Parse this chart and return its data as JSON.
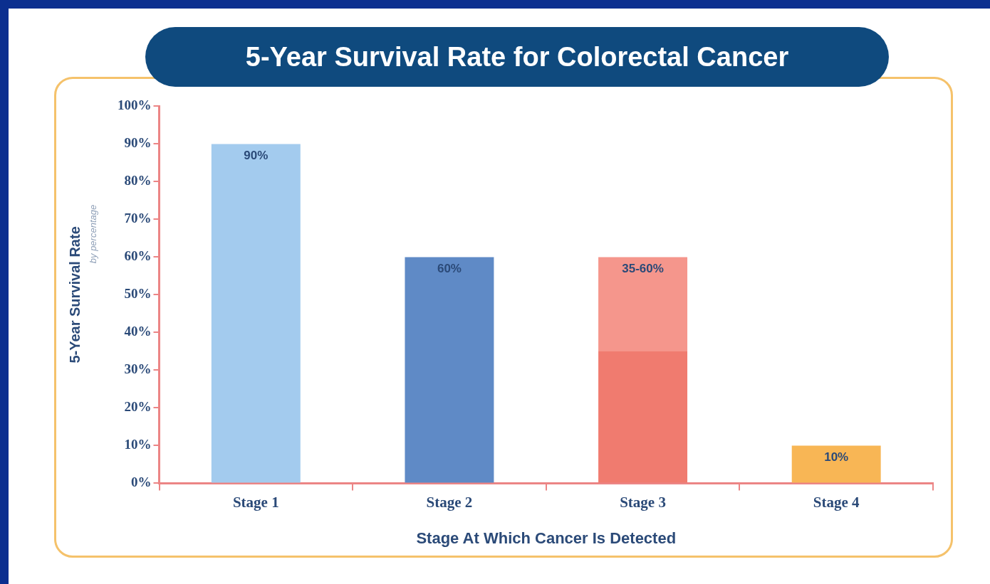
{
  "chart_data": {
    "type": "bar",
    "title": "5-Year Survival Rate for Colorectal Cancer",
    "xlabel": "Stage At Which Cancer Is Detected",
    "ylabel": "5-Year Survival Rate",
    "annotations": [
      "by percentage",
      {
        "text": "35-60%",
        "x": "Stage 3",
        "y": 60
      }
    ],
    "categories": [
      "Stage 1",
      "Stage 2",
      "Stage 3",
      "Stage 4"
    ],
    "stacked": true,
    "legend": false,
    "grid": false,
    "series": [
      {
        "colors": [
          "#a3cbee",
          "#5f8ac6",
          "#f07b6f",
          "#f8b655"
        ],
        "values": [
          90,
          60,
          35,
          10
        ],
        "value_labels": [
          "90%",
          "60%",
          null,
          "10%"
        ]
      },
      {
        "colors": [
          "#f5968c",
          "#f5968c",
          "#f5968c",
          "#f5968c"
        ],
        "values": [
          null,
          null,
          25,
          null
        ],
        "value_labels": [
          null,
          null,
          null,
          null
        ]
      }
    ],
    "ylim": [
      0,
      100
    ],
    "yticks": [
      {
        "value": 0,
        "label": "0%"
      },
      {
        "value": 10,
        "label": "10%"
      },
      {
        "value": 20,
        "label": "20%"
      },
      {
        "value": 30,
        "label": "30%"
      },
      {
        "value": 40,
        "label": "40%"
      },
      {
        "value": 50,
        "label": "50%"
      },
      {
        "value": 60,
        "label": "60%"
      },
      {
        "value": 70,
        "label": "70%"
      },
      {
        "value": 80,
        "label": "80%"
      },
      {
        "value": 90,
        "label": "90%"
      },
      {
        "value": 100,
        "label": "100%"
      }
    ]
  }
}
